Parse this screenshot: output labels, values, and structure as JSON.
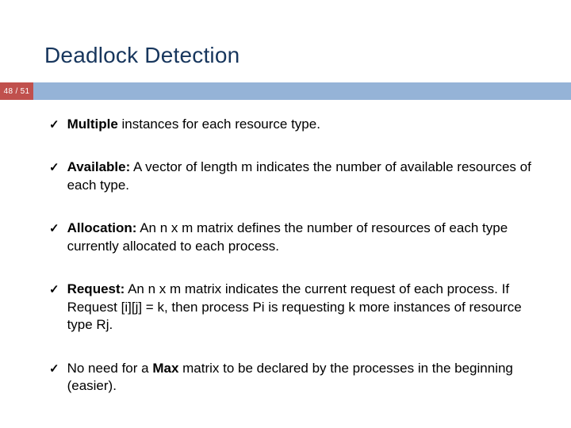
{
  "title": "Deadlock Detection",
  "page_number": "48 / 51",
  "colors": {
    "title_color": "#17365d",
    "page_box_bg": "#c0504d",
    "band_bg": "#95b3d7",
    "background": "#ffffff",
    "text_color": "#000000"
  },
  "typography": {
    "title_fontsize": 28,
    "body_fontsize": 17,
    "page_fontsize": 10
  },
  "bullets": [
    {
      "bold1": "Multiple",
      "text1": " instances for each resource type."
    },
    {
      "bold1": "Available:",
      "text1": " A vector of length m indicates the number of available resources of each type."
    },
    {
      "bold1": "Allocation:",
      "text1": " An n x m matrix defines the number of resources of each type currently allocated to each process."
    },
    {
      "bold1": "Request:",
      "text1": " An n x m matrix indicates the current request  of each process.  If Request [i][j] = k, then process Pi is requesting k more instances of resource type Rj."
    },
    {
      "text0": "No need for a ",
      "bold1": "Max",
      "text1": " matrix to be declared by the processes in the beginning (easier)."
    }
  ],
  "checkmark": "✓"
}
